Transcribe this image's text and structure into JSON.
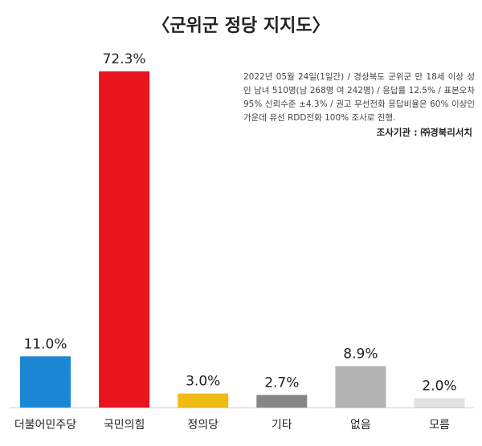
{
  "chart_data": {
    "type": "bar",
    "title": "〈군위군 정당 지지도〉",
    "categories": [
      "더불어민주당",
      "국민의힘",
      "정의당",
      "기타",
      "없음",
      "모름"
    ],
    "values": [
      11.0,
      72.3,
      3.0,
      2.7,
      8.9,
      2.0
    ],
    "value_labels": [
      "11.0%",
      "72.3%",
      "3.0%",
      "2.7%",
      "8.9%",
      "2.0%"
    ],
    "colors": [
      "#1a86d4",
      "#e8141e",
      "#f1bb16",
      "#868686",
      "#b3b3b3",
      "#e2e2e2"
    ],
    "ylim": [
      0,
      72.3
    ],
    "grid": false,
    "legend": "none",
    "notes": "2022년 05월 24일(1일간) / 경상북도 군위군 만 18세 이상 성인 남녀 510명(남 268명 여 242명) / 응답률 12.5% / 표본오차 95% 신뢰수준 ±4.3% / 권고 무선전화 응답비율은 60% 이상인 가운데 유선 RDD전화 100% 조사로 진행.",
    "source": "조사기관 : ㈜경북리서치"
  }
}
